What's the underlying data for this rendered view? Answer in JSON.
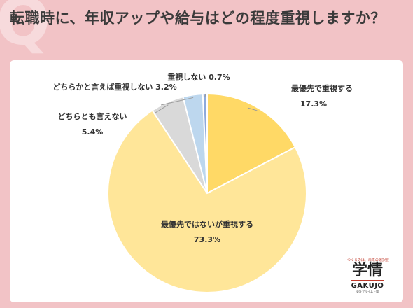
{
  "title": "転職時に、年収アップや給与はどの程度重視しますか？",
  "chart_data": {
    "type": "pie",
    "title": "転職時に、年収アップや給与はどの程度重視しますか？",
    "slices": [
      {
        "label": "最優先で重視する",
        "value": 17.3,
        "display": "17.3%",
        "color": "#ffd966"
      },
      {
        "label": "最優先ではないが重視する",
        "value": 73.3,
        "display": "73.3%",
        "color": "#ffe699"
      },
      {
        "label": "どちらとも言えない",
        "value": 5.4,
        "display": "5.4%",
        "color": "#d9d9d9"
      },
      {
        "label": "どちらかと言えば重視しない",
        "value": 3.2,
        "display": "3.2%",
        "color": "#bdd7ee"
      },
      {
        "label": "重視しない",
        "value": 0.7,
        "display": "0.7%",
        "color": "#8eaadb"
      }
    ],
    "start_angle": "12 o'clock",
    "direction": "clockwise"
  },
  "logo": {
    "tagline": "つくるのは、未来の選択肢",
    "kanji": "学情",
    "roman": "GAKUJO",
    "sub": "東証プライム上場"
  }
}
